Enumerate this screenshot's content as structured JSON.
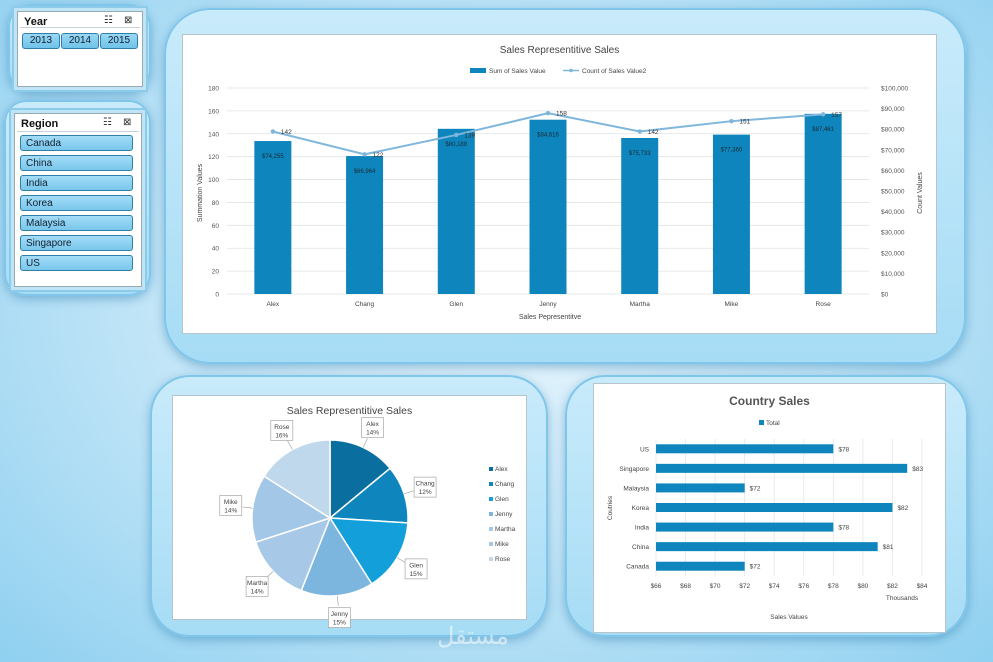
{
  "slicers": {
    "year": {
      "title": "Year",
      "items": [
        "2013",
        "2014",
        "2015"
      ]
    },
    "region": {
      "title": "Region",
      "items": [
        "Canada",
        "China",
        "India",
        "Korea",
        "Malaysia",
        "Singapore",
        "US"
      ]
    }
  },
  "combo_chart": {
    "title": "Sales Representitive Sales",
    "legend": [
      "Sum of Sales Value",
      "Count of Sales Value2"
    ],
    "xlabel": "Sales Pepresentitve",
    "ylabel_left": "Summation Values",
    "ylabel_right": "Count Values",
    "left_ticks": [
      "0",
      "20",
      "40",
      "60",
      "80",
      "100",
      "120",
      "140",
      "160",
      "180"
    ],
    "right_ticks": [
      "$0",
      "$10,000",
      "$20,000",
      "$30,000",
      "$40,000",
      "$50,000",
      "$60,000",
      "$70,000",
      "$80,000",
      "$90,000",
      "$100,000"
    ]
  },
  "pie_chart": {
    "title": "Sales Representitive Sales",
    "slices": [
      {
        "name": "Alex",
        "pct": "14%"
      },
      {
        "name": "Chang",
        "pct": "12%"
      },
      {
        "name": "Glen",
        "pct": "15%"
      },
      {
        "name": "Jenny",
        "pct": "15%"
      },
      {
        "name": "Martha",
        "pct": "14%"
      },
      {
        "name": "Mike",
        "pct": "14%"
      },
      {
        "name": "Rose",
        "pct": "16%"
      }
    ]
  },
  "bar_chart": {
    "title": "Country Sales",
    "legend": "Total",
    "ylabel": "Coutries",
    "xlabel": "Sales Values",
    "units": "Thousands",
    "x_ticks": [
      "$66",
      "$68",
      "$70",
      "$72",
      "$74",
      "$76",
      "$78",
      "$80",
      "$82",
      "$84"
    ]
  },
  "colors": {
    "bar": "#0e86bd",
    "line": "#7fb6db",
    "pie": [
      "#0a6e9f",
      "#0e86bd",
      "#139fd9",
      "#7cb6df",
      "#a7c8e6",
      "#a3c7e6",
      "#bfd8ec"
    ]
  },
  "watermark": "مستقل",
  "chart_data": [
    {
      "type": "bar",
      "title": "Sales Representitive Sales",
      "categories": [
        "Alex",
        "Chang",
        "Glen",
        "Jenny",
        "Martha",
        "Mike",
        "Rose"
      ],
      "series": [
        {
          "name": "Sum of Sales Value",
          "type": "bar",
          "axis": "right",
          "values": [
            74255,
            66964,
            80188,
            84616,
            75733,
            77360,
            87461
          ],
          "labels": [
            "$74,255",
            "$66,964",
            "$80,188",
            "$84,616",
            "$75,733",
            "$77,360",
            "$87,461"
          ]
        },
        {
          "name": "Count of Sales Value2",
          "type": "line",
          "axis": "left",
          "values": [
            142,
            122,
            139,
            158,
            142,
            151,
            157
          ]
        }
      ],
      "xlabel": "Sales Pepresentitve",
      "ylabel": "Summation Values",
      "ylabel2": "Count Values",
      "ylim": [
        0,
        180
      ],
      "y2lim": [
        0,
        100000
      ],
      "grid": true,
      "legend": "top"
    },
    {
      "type": "pie",
      "title": "Sales Representitive Sales",
      "categories": [
        "Alex",
        "Chang",
        "Glen",
        "Jenny",
        "Martha",
        "Mike",
        "Rose"
      ],
      "values": [
        14,
        12,
        15,
        15,
        14,
        14,
        16
      ],
      "legend": "right"
    },
    {
      "type": "bar",
      "orientation": "horizontal",
      "title": "Country Sales",
      "categories": [
        "US",
        "Singapore",
        "Malaysia",
        "Korea",
        "India",
        "China",
        "Canada"
      ],
      "series": [
        {
          "name": "Total",
          "values": [
            78,
            83,
            72,
            82,
            78,
            81,
            72
          ]
        }
      ],
      "value_labels": [
        "$78",
        "$83",
        "$72",
        "$82",
        "$78",
        "$81",
        "$72"
      ],
      "xlabel": "Sales Values",
      "ylabel": "Coutries",
      "xlim": [
        66,
        84
      ],
      "grid": true,
      "legend": "top"
    }
  ]
}
